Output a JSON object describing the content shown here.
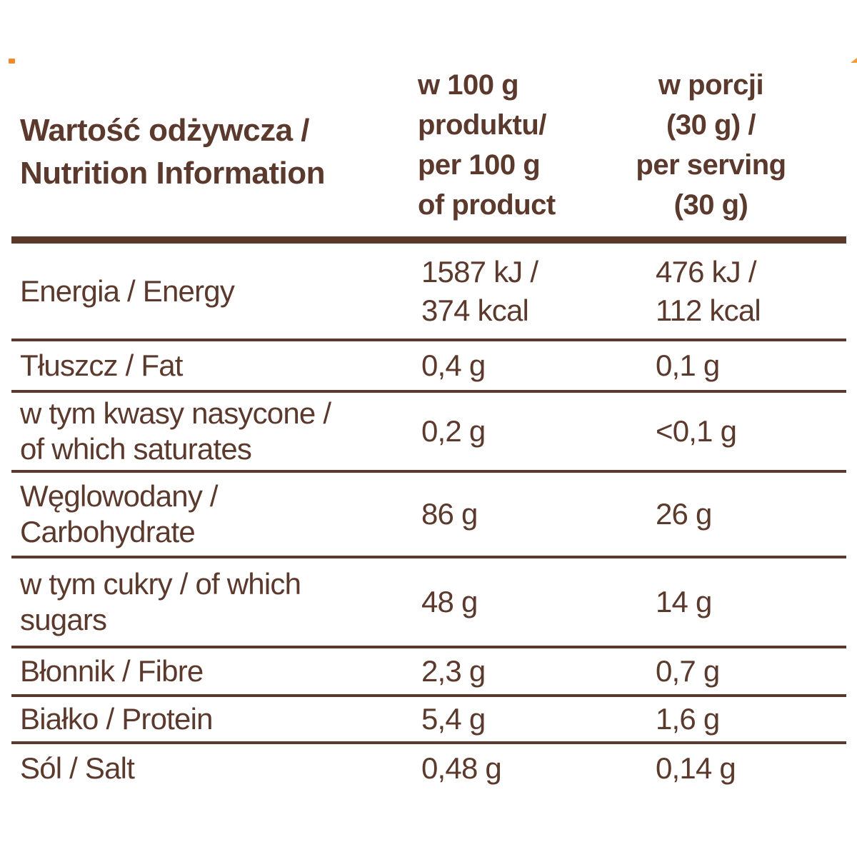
{
  "title": {
    "line1": "Wartość odżywcza /",
    "line2": "Nutrition Information"
  },
  "columns": {
    "per100": {
      "line1": "w 100 g",
      "line2": "produktu/",
      "line3": "per 100 g",
      "line4": "of product"
    },
    "serving": {
      "line1": "w porcji",
      "line2": "(30 g) /",
      "line3": "per serving",
      "line4": "(30 g)"
    }
  },
  "rows": [
    {
      "label": [
        "Energia / Energy"
      ],
      "per100": [
        "1587 kJ /",
        "374 kcal"
      ],
      "serving": [
        "476 kJ /",
        "112 kcal"
      ]
    },
    {
      "label": [
        "Tłuszcz / Fat"
      ],
      "per100": [
        "0,4 g"
      ],
      "serving": [
        "0,1 g"
      ]
    },
    {
      "label": [
        "w tym kwasy nasycone /",
        "of which saturates"
      ],
      "per100": [
        "0,2 g"
      ],
      "serving": [
        "<0,1 g"
      ]
    },
    {
      "label": [
        "Węglowodany /",
        "Carbohydrate"
      ],
      "per100": [
        "86 g"
      ],
      "serving": [
        "26 g"
      ]
    },
    {
      "label": [
        "w tym cukry / of which",
        "sugars"
      ],
      "per100": [
        "48 g"
      ],
      "serving": [
        "14 g"
      ]
    },
    {
      "label": [
        "Błonnik / Fibre"
      ],
      "per100": [
        "2,3 g"
      ],
      "serving": [
        "0,7 g"
      ]
    },
    {
      "label": [
        "Białko / Protein"
      ],
      "per100": [
        "5,4 g"
      ],
      "serving": [
        "1,6 g"
      ]
    },
    {
      "label": [
        "Sól / Salt"
      ],
      "per100": [
        "0,48 g"
      ],
      "serving": [
        "0,14 g"
      ]
    }
  ],
  "colors": {
    "text": "#5b392c",
    "rule": "#5b382c",
    "background": "#ffffff",
    "speck_orange": "#ef8b2d"
  }
}
